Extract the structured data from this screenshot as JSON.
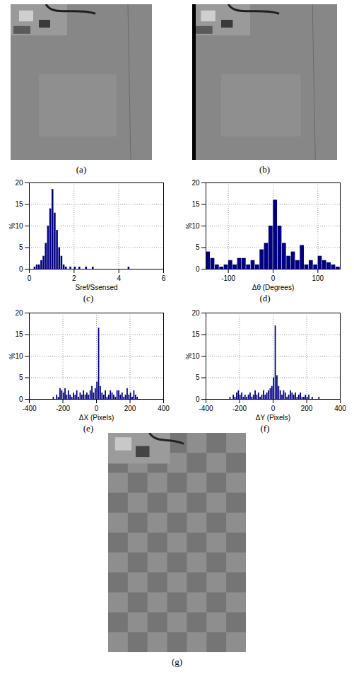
{
  "chart_data": [
    {
      "type": "histogram",
      "caption": "(c)",
      "xlabel": "Sref/Ssensed",
      "ylabel": "%",
      "color": "#00007f",
      "grid": true,
      "xlim": [
        0,
        6
      ],
      "xticks": [
        0,
        2,
        4,
        6
      ],
      "ylim": [
        0,
        20
      ],
      "yticks": [
        0,
        5,
        10,
        15,
        20
      ],
      "bins": [
        0,
        0.1,
        0.2,
        0.3,
        0.4,
        0.5,
        0.6,
        0.7,
        0.8,
        0.9,
        1,
        1.1,
        1.2,
        1.3,
        1.4,
        1.5,
        1.6,
        1.7,
        1.8,
        1.9,
        2,
        2.1,
        2.2,
        2.3,
        2.4,
        2.5,
        2.6,
        2.7,
        2.8,
        2.9,
        3,
        3.1,
        3.2,
        3.3,
        3.4,
        3.5,
        3.6,
        3.7,
        3.8,
        3.9,
        4,
        4.1,
        4.2,
        4.3,
        4.4,
        4.5,
        4.6
      ],
      "values": [
        0,
        0,
        0.5,
        1,
        1,
        2,
        3,
        6,
        10,
        14,
        18.5,
        13,
        9,
        5,
        3,
        1,
        0.5,
        0,
        0.5,
        0,
        0.5,
        0,
        0.5,
        0,
        0,
        0.5,
        0,
        0,
        0.5,
        0,
        0,
        0,
        0,
        0,
        0,
        0,
        0,
        0,
        0,
        0,
        0,
        0,
        0,
        0,
        0.5,
        0
      ]
    },
    {
      "type": "histogram",
      "caption": "(d)",
      "xlabel": "Δθ (Degrees)",
      "ylabel": "%",
      "color": "#00007f",
      "grid": true,
      "xlim": [
        -150,
        150
      ],
      "xticks": [
        -100,
        0,
        100
      ],
      "ylim": [
        0,
        20
      ],
      "yticks": [
        0,
        5,
        10,
        15,
        20
      ],
      "bins": [
        -150,
        -140,
        -130,
        -120,
        -110,
        -100,
        -90,
        -80,
        -70,
        -60,
        -50,
        -40,
        -30,
        -20,
        -10,
        0,
        10,
        20,
        30,
        40,
        50,
        60,
        70,
        80,
        90,
        100,
        110,
        120,
        130,
        140,
        150
      ],
      "values": [
        4,
        2.5,
        1,
        0.5,
        1,
        2,
        1,
        2.5,
        2.5,
        1,
        2,
        1,
        4.5,
        6,
        10,
        16,
        10,
        6,
        3,
        4,
        2,
        5.5,
        1,
        2,
        1,
        3,
        2,
        1.5,
        1,
        0.5
      ]
    },
    {
      "type": "histogram",
      "caption": "(e)",
      "xlabel": "ΔX (Pixels)",
      "ylabel": "%",
      "color": "#00007f",
      "grid": true,
      "xlim": [
        -400,
        400
      ],
      "xticks": [
        -400,
        -200,
        0,
        200,
        400
      ],
      "ylim": [
        0,
        20
      ],
      "yticks": [
        0,
        5,
        10,
        15,
        20
      ],
      "bins": [
        -260,
        -250,
        -240,
        -230,
        -220,
        -210,
        -200,
        -190,
        -180,
        -170,
        -160,
        -150,
        -140,
        -130,
        -120,
        -110,
        -100,
        -90,
        -80,
        -70,
        -60,
        -50,
        -40,
        -30,
        -20,
        -10,
        0,
        10,
        20,
        30,
        40,
        50,
        60,
        70,
        80,
        90,
        100,
        110,
        120,
        130,
        140,
        150,
        160,
        170,
        180,
        190,
        200,
        210,
        220,
        230,
        240,
        250,
        260
      ],
      "values": [
        0.5,
        0,
        1,
        0.5,
        2.5,
        2,
        1.5,
        2.5,
        1,
        2,
        1,
        0.5,
        1.5,
        1,
        2,
        0.5,
        1.5,
        1,
        2,
        1,
        1.5,
        1,
        2,
        3,
        1.5,
        2.5,
        4,
        16.5,
        3,
        1.5,
        1,
        2,
        0.5,
        1,
        2,
        1.5,
        1,
        0.5,
        2,
        2,
        1,
        1.5,
        0.5,
        1,
        2.5,
        1,
        1.5,
        0.5,
        2,
        1,
        0.5,
        0
      ]
    },
    {
      "type": "histogram",
      "caption": "(f)",
      "xlabel": "ΔY (Pixels)",
      "ylabel": "%",
      "color": "#00007f",
      "grid": true,
      "xlim": [
        -400,
        400
      ],
      "xticks": [
        -400,
        -200,
        0,
        200,
        400
      ],
      "ylim": [
        0,
        20
      ],
      "yticks": [
        0,
        5,
        10,
        15,
        20
      ],
      "bins": [
        -260,
        -250,
        -240,
        -230,
        -220,
        -210,
        -200,
        -190,
        -180,
        -170,
        -160,
        -150,
        -140,
        -130,
        -120,
        -110,
        -100,
        -90,
        -80,
        -70,
        -60,
        -50,
        -40,
        -30,
        -20,
        -10,
        0,
        10,
        20,
        30,
        40,
        50,
        60,
        70,
        80,
        90,
        100,
        110,
        120,
        130,
        140,
        150,
        160,
        170,
        180,
        190,
        200,
        210,
        220,
        230,
        240,
        250,
        260,
        270,
        280
      ],
      "values": [
        0.5,
        0,
        1,
        0.5,
        1.5,
        2,
        1,
        1.5,
        0.5,
        1,
        0.5,
        1,
        1.5,
        0.5,
        1,
        2,
        1,
        1.5,
        0.5,
        1,
        2,
        1,
        1.5,
        2,
        2.5,
        3,
        5,
        17,
        5.5,
        3,
        2,
        1,
        2,
        1.5,
        0.5,
        1,
        2,
        1.5,
        1,
        1.5,
        0.5,
        1,
        1.5,
        0.5,
        0.5,
        1,
        0.5,
        1,
        0,
        0.5,
        0,
        0,
        0,
        0.5
      ]
    }
  ],
  "images": [
    {
      "caption": "(a)"
    },
    {
      "caption": "(b)"
    },
    {
      "caption": "(g)"
    }
  ]
}
